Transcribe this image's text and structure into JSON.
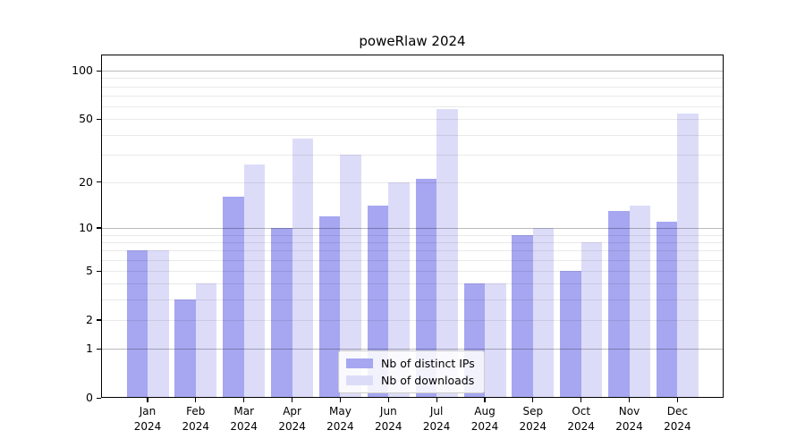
{
  "chart_data": {
    "type": "bar",
    "title": "poweRlaw 2024",
    "categories": [
      "Jan 2024",
      "Feb 2024",
      "Mar 2024",
      "Apr 2024",
      "May 2024",
      "Jun 2024",
      "Jul 2024",
      "Aug 2024",
      "Sep 2024",
      "Oct 2024",
      "Nov 2024",
      "Dec 2024"
    ],
    "series": [
      {
        "name": "Nb of distinct IPs",
        "color": "#a6a6f1",
        "values": [
          7,
          3,
          16,
          10,
          12,
          14,
          21,
          4,
          9,
          5,
          13,
          11
        ]
      },
      {
        "name": "Nb of downloads",
        "color": "#dcdcf9",
        "values": [
          7,
          4,
          26,
          38,
          30,
          20,
          58,
          4,
          10,
          8,
          14,
          54
        ]
      }
    ],
    "xlabel": "",
    "ylabel": "",
    "yscale": "log1p",
    "ylim": [
      0,
      126
    ],
    "ytick_values": [
      0,
      1,
      2,
      5,
      10,
      20,
      50,
      100
    ],
    "ytick_labels": [
      "0",
      "1",
      "2",
      "5",
      "10",
      "20",
      "50",
      "100"
    ],
    "major_gridline_values": [
      1,
      10,
      100
    ],
    "minor_gridline_values": [
      2,
      3,
      4,
      5,
      6,
      7,
      8,
      9,
      20,
      30,
      40,
      50,
      60,
      70,
      80,
      90
    ],
    "grid": "on",
    "legend_position": "bottom-center",
    "colors": {
      "major_grid": "rgba(0,0,0,0.27)",
      "minor_grid": "rgba(0,0,0,0.085)",
      "axis": "#000000",
      "legend_border": "#cccccc",
      "background": "#ffffff"
    }
  }
}
